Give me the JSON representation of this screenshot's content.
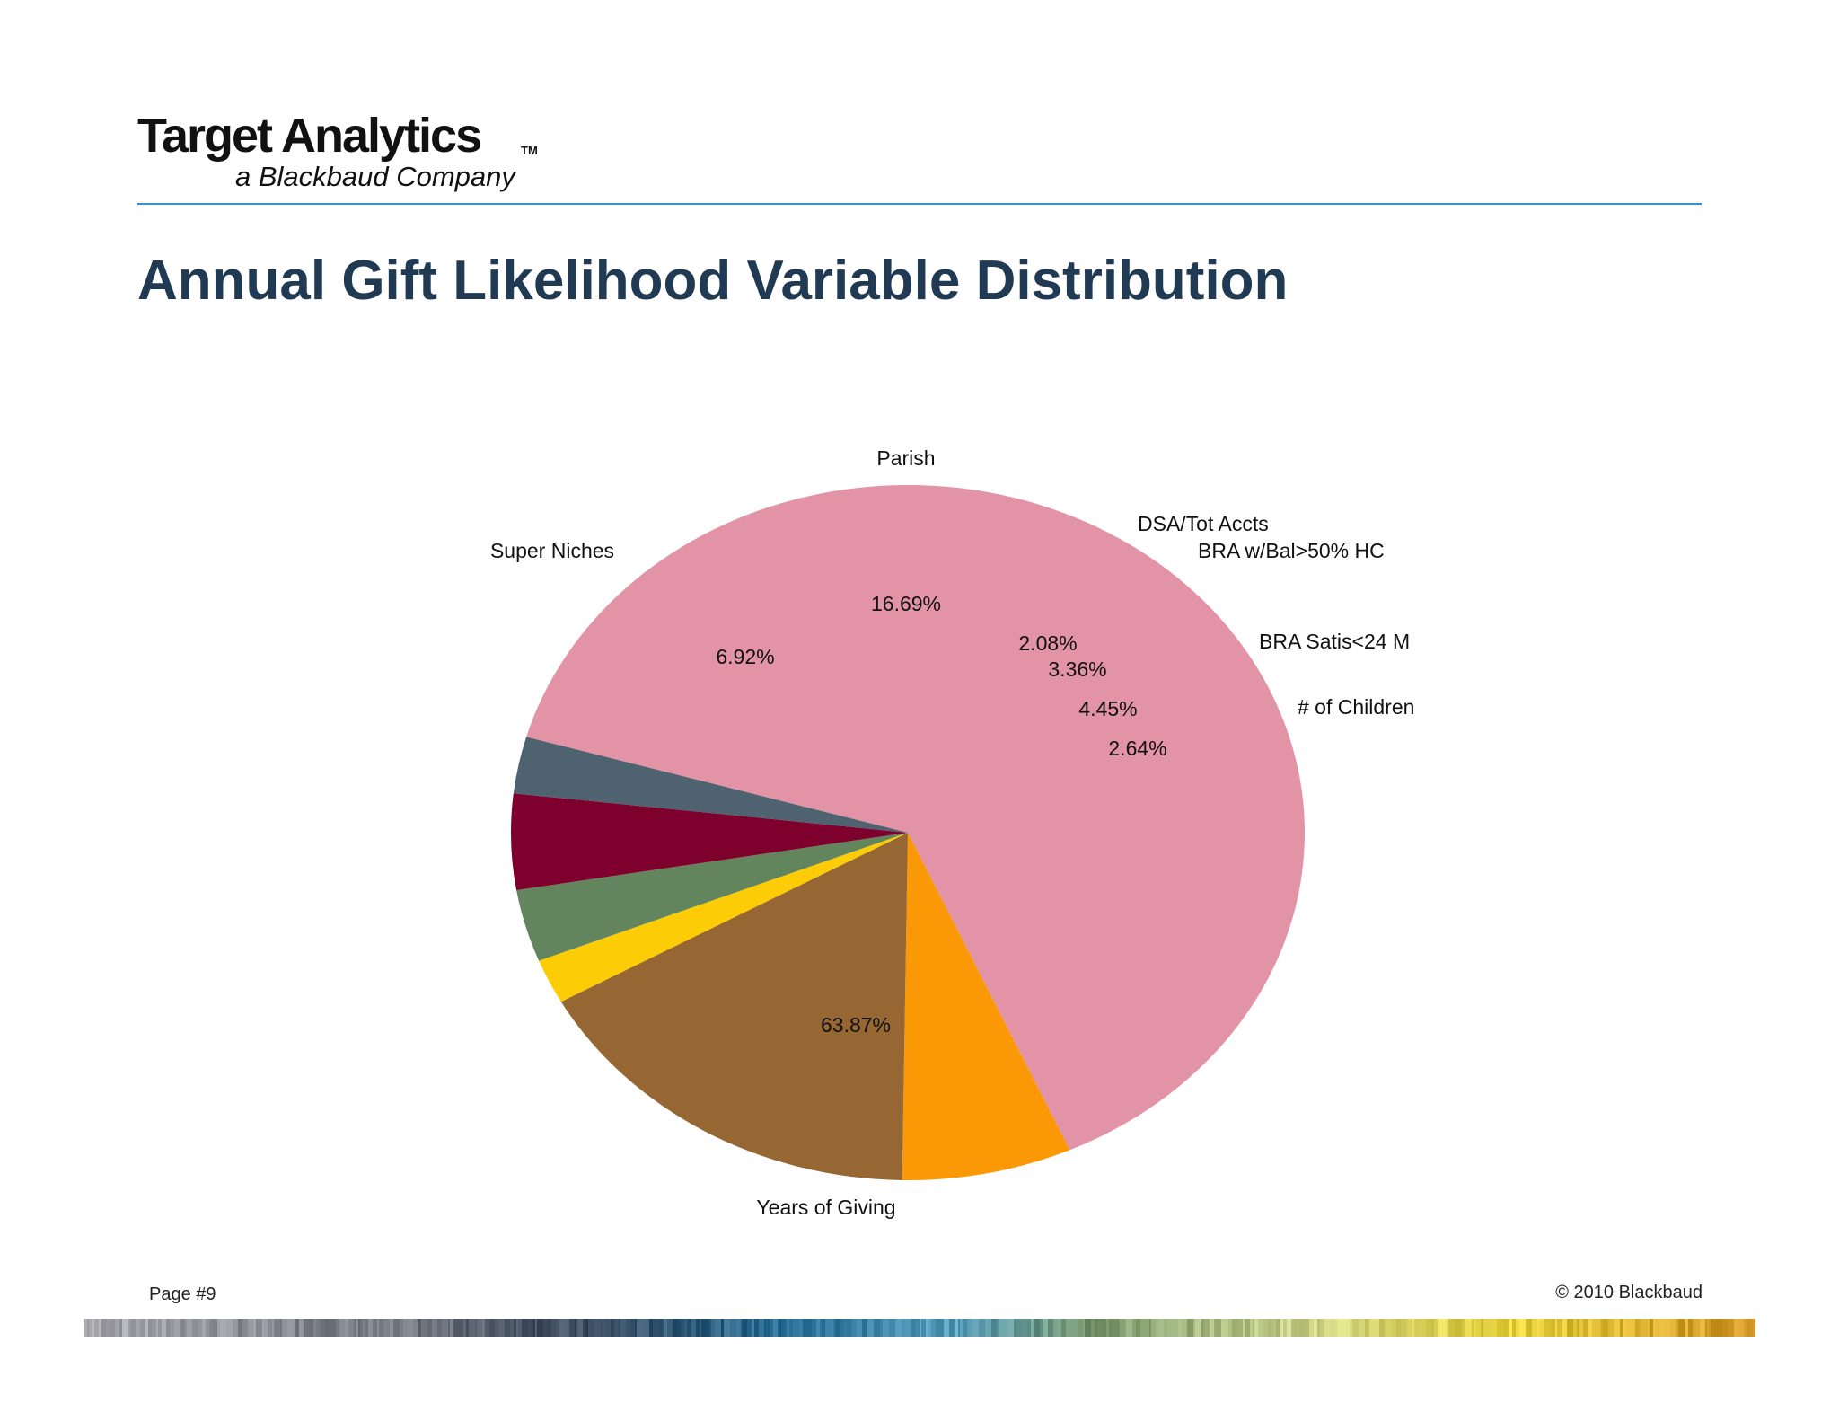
{
  "header": {
    "logo_main": "Target Analytics",
    "logo_tm": "TM",
    "logo_sub": "a Blackbaud Company",
    "rule_color": "#3b8fc7"
  },
  "title": "Annual Gift Likelihood Variable Distribution",
  "footer": {
    "page": "Page #9",
    "copyright": "© 2010 Blackbaud"
  },
  "chart_data": {
    "type": "pie",
    "title": "",
    "slices": [
      {
        "label": "Years of Giving",
        "value": 63.87,
        "value_label": "63.87%",
        "color": "#e393a6"
      },
      {
        "label": "Super Niches",
        "value": 6.92,
        "value_label": "6.92%",
        "color": "#fb9806"
      },
      {
        "label": "Parish",
        "value": 16.69,
        "value_label": "16.69%",
        "color": "#966633"
      },
      {
        "label": "DSA/Tot Accts",
        "value": 2.08,
        "value_label": "2.08%",
        "color": "#fccc06"
      },
      {
        "label": "BRA w/Bal>50% HC",
        "value": 3.36,
        "value_label": "3.36%",
        "color": "#62855d"
      },
      {
        "label": "BRA Satis<24 M",
        "value": 4.45,
        "value_label": "4.45%",
        "color": "#7e002c"
      },
      {
        "label": "# of Children",
        "value": 2.64,
        "value_label": "2.64%",
        "color": "#4f626f"
      }
    ],
    "legend": "none",
    "labels": "outside-category, inside-percent"
  }
}
